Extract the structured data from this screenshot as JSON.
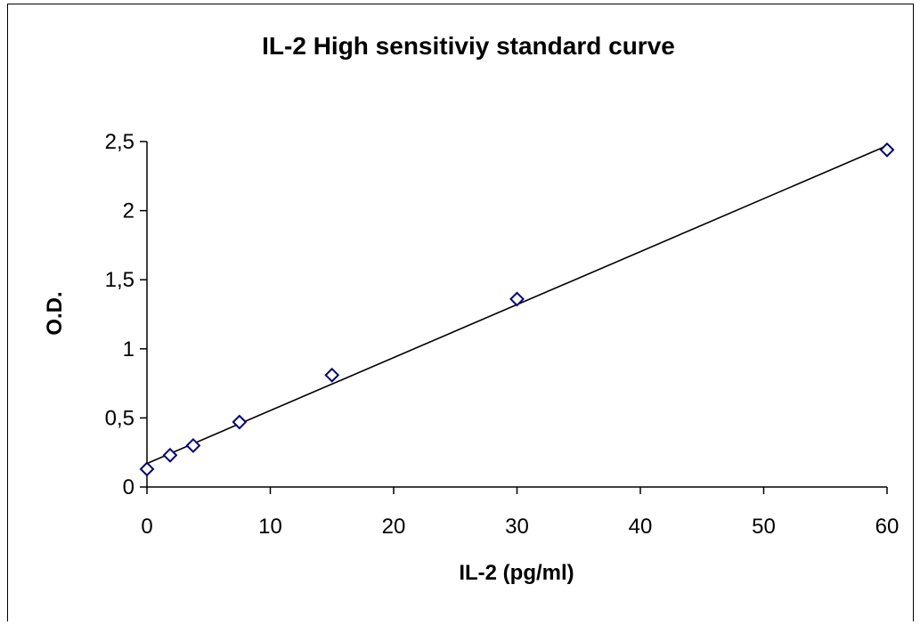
{
  "chart_data": {
    "type": "scatter",
    "title": "IL-2 High sensitiviy standard curve",
    "xlabel": "IL-2 (pg/ml)",
    "ylabel": "O.D.",
    "xlim": [
      0,
      60
    ],
    "ylim": [
      0,
      2.5
    ],
    "x_ticks": [
      "0",
      "10",
      "20",
      "30",
      "40",
      "50",
      "60"
    ],
    "y_ticks": [
      "0",
      "0,5",
      "1",
      "1,5",
      "2",
      "2,5"
    ],
    "x_tick_values": [
      0,
      10,
      20,
      30,
      40,
      50,
      60
    ],
    "y_tick_values": [
      0,
      0.5,
      1,
      1.5,
      2,
      2.5
    ],
    "grid": false,
    "legend": "none",
    "series": [
      {
        "x": [
          0,
          1.875,
          3.75,
          7.5,
          15,
          30,
          60
        ],
        "y": [
          0.13,
          0.23,
          0.3,
          0.47,
          0.81,
          1.36,
          2.44
        ],
        "marker": "diamond",
        "marker_color": "#000080"
      }
    ],
    "trendline": {
      "type": "linear",
      "color": "#000000",
      "from": [
        0,
        0.17
      ],
      "to": [
        60,
        2.47
      ]
    }
  }
}
